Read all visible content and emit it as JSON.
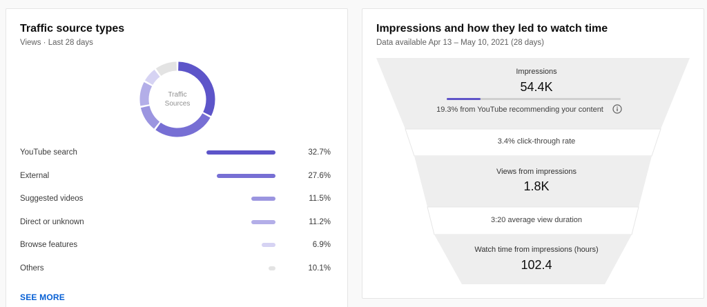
{
  "traffic": {
    "title": "Traffic source types",
    "subtitle": "Views · Last 28 days",
    "donut_label": "Traffic Sources",
    "see_more": "SEE MORE",
    "sources": [
      {
        "name": "YouTube search",
        "percent_text": "32.7%",
        "value": 32.7,
        "color": "#5d55c9"
      },
      {
        "name": "External",
        "percent_text": "27.6%",
        "value": 27.6,
        "color": "#776fd4"
      },
      {
        "name": "Suggested videos",
        "percent_text": "11.5%",
        "value": 11.5,
        "color": "#9b95e0"
      },
      {
        "name": "Direct or unknown",
        "percent_text": "11.2%",
        "value": 11.2,
        "color": "#b3aee8"
      },
      {
        "name": "Browse features",
        "percent_text": "6.9%",
        "value": 6.9,
        "color": "#d6d3f3"
      },
      {
        "name": "Others",
        "percent_text": "10.1%",
        "value": 10.1,
        "color": "#e3e3e3"
      }
    ]
  },
  "funnel": {
    "title": "Impressions and how they led to watch time",
    "subtitle": "Data available Apr 13 – May 10, 2021 (28 days)",
    "impressions_label": "Impressions",
    "impressions_value": "54.4K",
    "recommend_note": "19.3% from YouTube recommending your content",
    "recommend_fraction": 0.193,
    "ctr_note": "3.4% click-through rate",
    "views_label": "Views from impressions",
    "views_value": "1.8K",
    "avd_note": "3:20 average view duration",
    "watch_label": "Watch time from impressions (hours)",
    "watch_value": "102.4",
    "info_icon": "info-icon"
  }
}
